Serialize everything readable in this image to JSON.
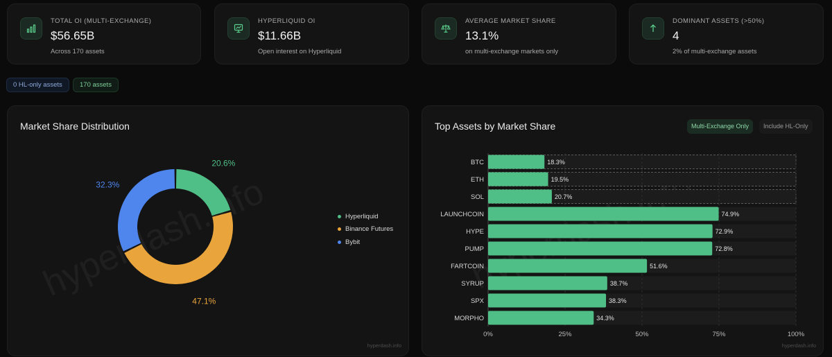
{
  "stats": [
    {
      "title": "TOTAL OI (MULTI-EXCHANGE)",
      "value": "$56.65B",
      "sub": "Across 170 assets",
      "icon": "bar-chart-icon"
    },
    {
      "title": "HYPERLIQUID OI",
      "value": "$11.66B",
      "sub": "Open interest on Hyperliquid",
      "icon": "presentation-chart-icon"
    },
    {
      "title": "AVERAGE MARKET SHARE",
      "value": "13.1%",
      "sub": "on multi-exchange markets only",
      "icon": "scale-icon"
    },
    {
      "title": "DOMINANT ASSETS (>50%)",
      "value": "4",
      "sub": "2% of multi-exchange assets",
      "icon": "arrow-up-icon"
    }
  ],
  "filters": {
    "hl_only": "0 HL-only assets",
    "assets": "170 assets"
  },
  "distribution": {
    "title": "Market Share Distribution",
    "watermark": "hyperdash.info",
    "watermark_small": "hyperdash.info"
  },
  "top_assets": {
    "title": "Top Assets by Market Share",
    "toggle_active": "Multi-Exchange Only",
    "toggle_inactive": "Include HL-Only",
    "watermark": "hyperdash.info",
    "watermark_small": "hyperdash.info"
  },
  "colors": {
    "hyperliquid": "#4fbf87",
    "binance": "#e9a53c",
    "bybit": "#4f86ee",
    "accent": "#4fbf87"
  },
  "chart_data": [
    {
      "type": "pie",
      "variant": "donut",
      "title": "Market Share Distribution",
      "categories": [
        "Hyperliquid",
        "Binance Futures",
        "Bybit"
      ],
      "values": [
        20.6,
        47.1,
        32.3
      ],
      "labels": [
        "20.6%",
        "47.1%",
        "32.3%"
      ],
      "colors": [
        "#4fbf87",
        "#e9a53c",
        "#4f86ee"
      ],
      "legend": "right"
    },
    {
      "type": "bar",
      "orientation": "horizontal",
      "title": "Top Assets by Market Share",
      "categories": [
        "BTC",
        "ETH",
        "SOL",
        "LAUNCHCOIN",
        "HYPE",
        "PUMP",
        "FARTCOIN",
        "SYRUP",
        "SPX",
        "MORPHO"
      ],
      "values": [
        18.3,
        19.5,
        20.7,
        74.9,
        72.9,
        72.8,
        51.6,
        38.7,
        38.3,
        34.3
      ],
      "highlighted": [
        "BTC",
        "ETH",
        "SOL"
      ],
      "xlim": [
        0,
        100
      ],
      "xticks": [
        "0%",
        "25%",
        "50%",
        "75%",
        "100%"
      ],
      "grid": true
    }
  ]
}
